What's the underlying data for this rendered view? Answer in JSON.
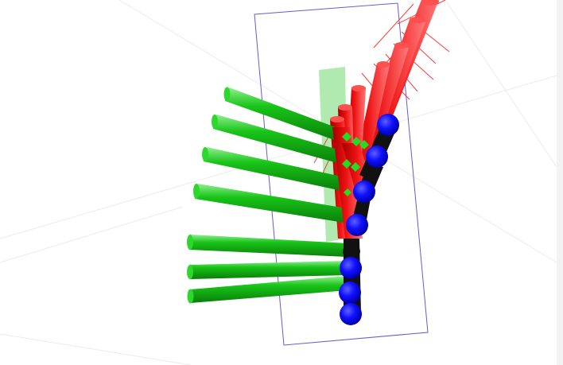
{
  "scene": {
    "background": "#ffffff",
    "floor_grid_color": "#ececec",
    "bounding_box_color": "#6a5acd",
    "colors": {
      "green_link": "#18c418",
      "green_dark": "#0a7e0a",
      "green_light": "#8ff08f",
      "red_link": "#ee1111",
      "red_dark": "#a20000",
      "red_light": "#ff7a7a",
      "joint_blue": "#1010ff",
      "joint_black": "#111111",
      "ghost_green": "#a8e8a8",
      "red_line": "#ff3b3b"
    },
    "icons": {
      "joint": "sphere-icon",
      "link": "cylinder-icon"
    },
    "green_link_count": 7,
    "red_link_count": 7,
    "joint_count": 8
  }
}
